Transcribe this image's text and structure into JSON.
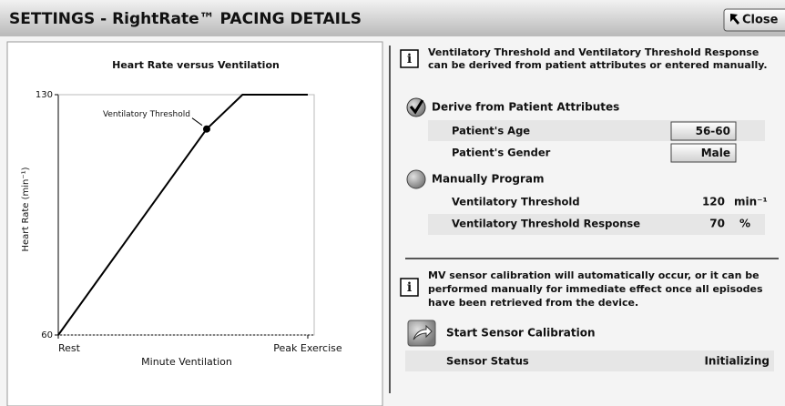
{
  "header": {
    "title": "SETTINGS - RightRate™ PACING DETAILS",
    "close": "Close"
  },
  "chart_data": {
    "type": "line",
    "title": "Heart Rate versus Ventilation",
    "x_label": "Minute Ventilation",
    "y_label": "Heart Rate (min⁻¹)",
    "x": [
      0,
      58,
      72,
      97.5
    ],
    "series": [
      {
        "color": "#000000",
        "values": [
          60,
          120,
          130,
          130
        ]
      }
    ],
    "xlim": [
      0,
      100
    ],
    "xticks": [
      {
        "value": 0,
        "label": "Rest"
      },
      {
        "value": 97.5,
        "label": "Peak Exercise"
      }
    ],
    "ylim": [
      60,
      130
    ],
    "yticks": [
      60,
      130
    ],
    "annotation": {
      "text": "Ventilatory Threshold",
      "point": 1
    }
  },
  "details": {
    "info1": [
      "Ventilatory Threshold and Ventilatory Threshold Response",
      "can be derived from patient attributes or entered manually."
    ],
    "derive": {
      "label": "Derive from Patient Attributes",
      "rows": [
        {
          "label": "Patient's Age",
          "value": "56-60"
        },
        {
          "label": "Patient's Gender",
          "value": "Male"
        }
      ]
    },
    "manual": {
      "label": "Manually Program",
      "rows": [
        {
          "label": "Ventilatory Threshold",
          "value": "120",
          "unit": "min⁻¹"
        },
        {
          "label": "Ventilatory Threshold Response",
          "value": "70",
          "unit": "%"
        }
      ]
    },
    "info2": [
      "MV sensor calibration will automatically occur, or it can be",
      "performed manually for immediate effect once all episodes",
      "have been retrieved from the device."
    ],
    "calibration": "Start Sensor Calibration",
    "status": {
      "label": "Sensor Status",
      "value": "Initializing"
    }
  }
}
